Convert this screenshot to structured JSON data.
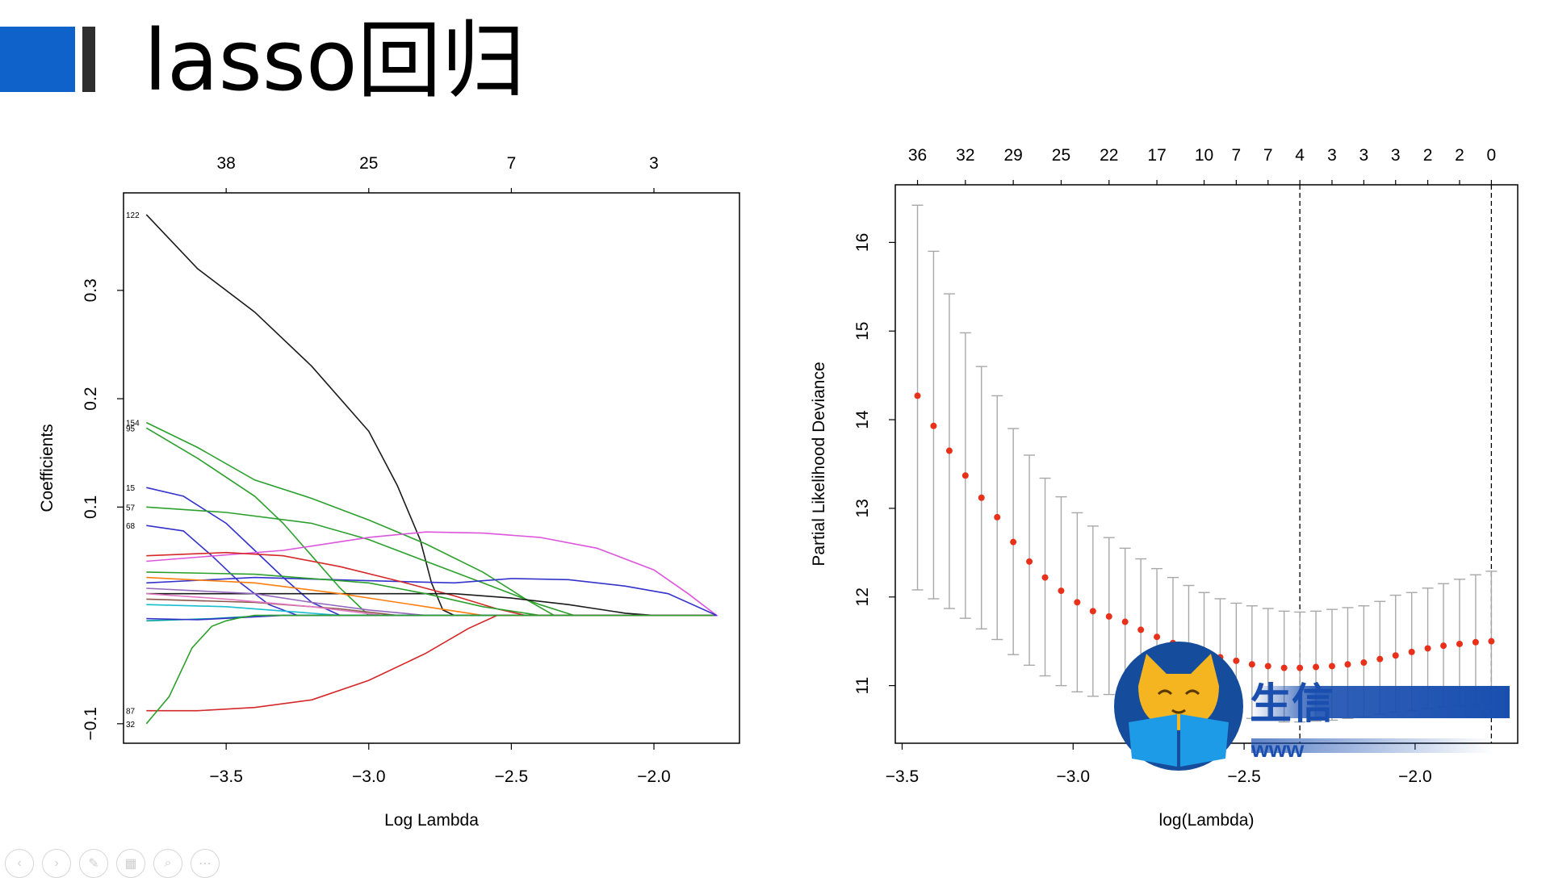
{
  "slide": {
    "title": "lasso回归"
  },
  "chart_data": [
    {
      "type": "line",
      "xlabel": "Log Lambda",
      "ylabel": "Coefficients",
      "xlim": [
        -3.86,
        -1.7
      ],
      "ylim": [
        -0.118,
        0.39
      ],
      "x_ticks": [
        -3.5,
        -3.0,
        -2.5,
        -2.0
      ],
      "x_tick_labels": [
        "−3.5",
        "−3.0",
        "−2.5",
        "−2.0"
      ],
      "y_ticks": [
        -0.1,
        0.1,
        0.2,
        0.3
      ],
      "y_tick_labels": [
        "−0.1",
        "0.1",
        "0.2",
        "0.3"
      ],
      "top_ticks": [
        -3.5,
        -3.0,
        -2.5,
        -2.0
      ],
      "top_tick_labels": [
        "38",
        "25",
        "7",
        "3"
      ],
      "series": [
        {
          "label": "122",
          "color": "#1a1a1a",
          "x": [
            -3.78,
            -3.6,
            -3.4,
            -3.2,
            -3.0,
            -2.9,
            -2.82,
            -2.78,
            -2.74,
            -2.7
          ],
          "y": [
            0.37,
            0.32,
            0.28,
            0.23,
            0.17,
            0.12,
            0.07,
            0.03,
            0.005,
            0
          ]
        },
        {
          "label": "154",
          "color": "#2ca02c",
          "x": [
            -3.78,
            -3.6,
            -3.4,
            -3.2,
            -3.0,
            -2.8,
            -2.6,
            -2.45,
            -2.35
          ],
          "y": [
            0.178,
            0.155,
            0.125,
            0.108,
            0.088,
            0.066,
            0.04,
            0.015,
            0
          ]
        },
        {
          "label": "95",
          "color": "#2ca02c",
          "x": [
            -3.78,
            -3.6,
            -3.4,
            -3.3,
            -3.2,
            -3.1,
            -3.0
          ],
          "y": [
            0.173,
            0.145,
            0.11,
            0.085,
            0.055,
            0.025,
            0
          ]
        },
        {
          "label": "15",
          "color": "#3333cc",
          "x": [
            -3.78,
            -3.65,
            -3.5,
            -3.4,
            -3.3,
            -3.2,
            -3.1
          ],
          "y": [
            0.118,
            0.11,
            0.085,
            0.06,
            0.035,
            0.012,
            0
          ]
        },
        {
          "label": "57",
          "color": "#2ca02c",
          "x": [
            -3.78,
            -3.5,
            -3.2,
            -3.0,
            -2.8,
            -2.6,
            -2.4,
            -2.28
          ],
          "y": [
            0.1,
            0.095,
            0.085,
            0.07,
            0.05,
            0.03,
            0.01,
            0
          ]
        },
        {
          "label": "68",
          "color": "#3333cc",
          "x": [
            -3.78,
            -3.65,
            -3.55,
            -3.45,
            -3.35,
            -3.25
          ],
          "y": [
            0.083,
            0.078,
            0.055,
            0.03,
            0.01,
            0
          ]
        },
        {
          "label": "",
          "color": "#dd55dd",
          "x": [
            -3.78,
            -3.3,
            -3.0,
            -2.8,
            -2.6,
            -2.4,
            -2.2,
            -2.0,
            -1.88,
            -1.78
          ],
          "y": [
            0.05,
            0.06,
            0.072,
            0.077,
            0.076,
            0.072,
            0.062,
            0.042,
            0.02,
            0
          ]
        },
        {
          "label": "",
          "color": "#3333cc",
          "x": [
            -3.78,
            -3.4,
            -3.0,
            -2.7,
            -2.5,
            -2.3,
            -2.1,
            -1.95,
            -1.78
          ],
          "y": [
            0.03,
            0.035,
            0.032,
            0.03,
            0.034,
            0.033,
            0.027,
            0.02,
            0
          ]
        },
        {
          "label": "",
          "color": "#d62728",
          "x": [
            -3.78,
            -3.5,
            -3.3,
            -3.1,
            -2.9,
            -2.7,
            -2.55,
            -2.45
          ],
          "y": [
            0.055,
            0.058,
            0.055,
            0.045,
            0.032,
            0.018,
            0.006,
            0
          ]
        },
        {
          "label": "",
          "color": "#1a1a1a",
          "x": [
            -3.78,
            -3.4,
            -3.0,
            -2.7,
            -2.5,
            -2.3,
            -2.1,
            -2.0
          ],
          "y": [
            0.02,
            0.02,
            0.02,
            0.02,
            0.016,
            0.01,
            0.002,
            0
          ]
        },
        {
          "label": "",
          "color": "#2ca02c",
          "x": [
            -3.78,
            -3.4,
            -3.0,
            -2.8,
            -2.6,
            -2.4
          ],
          "y": [
            0.04,
            0.038,
            0.03,
            0.02,
            0.008,
            0
          ]
        },
        {
          "label": "",
          "color": "#ff7f0e",
          "x": [
            -3.78,
            -3.4,
            -3.1,
            -2.8,
            -2.6
          ],
          "y": [
            0.035,
            0.03,
            0.02,
            0.008,
            0
          ]
        },
        {
          "label": "",
          "color": "#9467bd",
          "x": [
            -3.78,
            -3.4,
            -3.2,
            -3.0,
            -2.8
          ],
          "y": [
            0.025,
            0.02,
            0.012,
            0.005,
            0
          ]
        },
        {
          "label": "",
          "color": "#8c564b",
          "x": [
            -3.78,
            -3.4,
            -3.1,
            -2.9
          ],
          "y": [
            0.015,
            0.012,
            0.006,
            0
          ]
        },
        {
          "label": "",
          "color": "#17becf",
          "x": [
            -3.78,
            -3.5,
            -3.3,
            -3.1
          ],
          "y": [
            0.01,
            0.008,
            0.004,
            0
          ]
        },
        {
          "label": "",
          "color": "#e377c2",
          "x": [
            -3.78,
            -3.5,
            -3.2,
            -2.95
          ],
          "y": [
            0.02,
            0.015,
            0.008,
            0
          ]
        },
        {
          "label": "",
          "color": "#00a0a0",
          "x": [
            -3.78,
            -3.55,
            -3.35
          ],
          "y": [
            -0.005,
            -0.003,
            0
          ]
        },
        {
          "label": "",
          "color": "#3333cc",
          "x": [
            -3.78,
            -3.6,
            -3.45,
            -3.3
          ],
          "y": [
            -0.003,
            -0.004,
            -0.002,
            0
          ]
        },
        {
          "label": "87",
          "color": "#d62728",
          "x": [
            -3.78,
            -3.6,
            -3.4,
            -3.2,
            -3.0,
            -2.8,
            -2.65,
            -2.55
          ],
          "y": [
            -0.088,
            -0.088,
            -0.085,
            -0.078,
            -0.06,
            -0.035,
            -0.012,
            0
          ]
        },
        {
          "label": "32",
          "color": "#2ca02c",
          "x": [
            -3.78,
            -3.7,
            -3.62,
            -3.55,
            -3.5,
            -3.45,
            -3.4
          ],
          "y": [
            -0.1,
            -0.075,
            -0.03,
            -0.01,
            -0.005,
            -0.002,
            0
          ]
        }
      ]
    },
    {
      "type": "scatter",
      "xlabel": "log(Lambda)",
      "ylabel": "Partial Likelihood Deviance",
      "xlim": [
        -3.52,
        -1.7
      ],
      "ylim": [
        10.35,
        16.65
      ],
      "x_ticks": [
        -3.5,
        -3.0,
        -2.5,
        -2.0
      ],
      "x_tick_labels": [
        "−3.5",
        "−3.0",
        "−2.5",
        "−2.0"
      ],
      "y_ticks": [
        11,
        12,
        13,
        14,
        15,
        16
      ],
      "y_tick_labels": [
        "11",
        "12",
        "13",
        "14",
        "15",
        "16"
      ],
      "top_ticks": [
        -3.455,
        -3.315,
        -3.175,
        -3.035,
        -2.895,
        -2.755,
        -2.617,
        -2.523,
        -2.43,
        -2.337,
        -2.243,
        -2.15,
        -2.057,
        -1.963,
        -1.87,
        -1.777
      ],
      "top_tick_labels": [
        "36",
        "32",
        "29",
        "25",
        "22",
        "17",
        "10",
        "7",
        "7",
        "4",
        "3",
        "3",
        "3",
        "2",
        "2",
        "0"
      ],
      "vlines": [
        -2.337,
        -1.777
      ],
      "point_color": "#e8311a",
      "bar_color": "#a8a8a8",
      "points": [
        {
          "x": -3.455,
          "y": 14.27,
          "lo": 12.08,
          "hi": 16.42
        },
        {
          "x": -3.408,
          "y": 13.93,
          "lo": 11.98,
          "hi": 15.9
        },
        {
          "x": -3.362,
          "y": 13.65,
          "lo": 11.87,
          "hi": 15.42
        },
        {
          "x": -3.315,
          "y": 13.37,
          "lo": 11.76,
          "hi": 14.98
        },
        {
          "x": -3.268,
          "y": 13.12,
          "lo": 11.64,
          "hi": 14.6
        },
        {
          "x": -3.222,
          "y": 12.9,
          "lo": 11.52,
          "hi": 14.27
        },
        {
          "x": -3.175,
          "y": 12.62,
          "lo": 11.35,
          "hi": 13.9
        },
        {
          "x": -3.128,
          "y": 12.4,
          "lo": 11.23,
          "hi": 13.6
        },
        {
          "x": -3.082,
          "y": 12.22,
          "lo": 11.11,
          "hi": 13.34
        },
        {
          "x": -3.035,
          "y": 12.07,
          "lo": 11.0,
          "hi": 13.13
        },
        {
          "x": -2.988,
          "y": 11.94,
          "lo": 10.93,
          "hi": 12.95
        },
        {
          "x": -2.942,
          "y": 11.84,
          "lo": 10.88,
          "hi": 12.8
        },
        {
          "x": -2.895,
          "y": 11.78,
          "lo": 10.9,
          "hi": 12.67
        },
        {
          "x": -2.848,
          "y": 11.72,
          "lo": 10.88,
          "hi": 12.55
        },
        {
          "x": -2.802,
          "y": 11.63,
          "lo": 10.83,
          "hi": 12.43
        },
        {
          "x": -2.755,
          "y": 11.55,
          "lo": 10.8,
          "hi": 12.32
        },
        {
          "x": -2.708,
          "y": 11.48,
          "lo": 10.77,
          "hi": 12.22
        },
        {
          "x": -2.662,
          "y": 11.42,
          "lo": 10.74,
          "hi": 12.13
        },
        {
          "x": -2.617,
          "y": 11.36,
          "lo": 10.71,
          "hi": 12.05
        },
        {
          "x": -2.57,
          "y": 11.32,
          "lo": 10.68,
          "hi": 11.98
        },
        {
          "x": -2.523,
          "y": 11.28,
          "lo": 10.66,
          "hi": 11.93
        },
        {
          "x": -2.477,
          "y": 11.24,
          "lo": 10.63,
          "hi": 11.9
        },
        {
          "x": -2.43,
          "y": 11.22,
          "lo": 10.61,
          "hi": 11.87
        },
        {
          "x": -2.383,
          "y": 11.2,
          "lo": 10.59,
          "hi": 11.84
        },
        {
          "x": -2.337,
          "y": 11.2,
          "lo": 10.59,
          "hi": 11.83
        },
        {
          "x": -2.29,
          "y": 11.21,
          "lo": 10.6,
          "hi": 11.84
        },
        {
          "x": -2.243,
          "y": 11.22,
          "lo": 10.61,
          "hi": 11.86
        },
        {
          "x": -2.197,
          "y": 11.24,
          "lo": 10.63,
          "hi": 11.88
        },
        {
          "x": -2.15,
          "y": 11.26,
          "lo": 10.65,
          "hi": 11.9
        },
        {
          "x": -2.103,
          "y": 11.3,
          "lo": 10.68,
          "hi": 11.95
        },
        {
          "x": -2.057,
          "y": 11.34,
          "lo": 10.7,
          "hi": 12.02
        },
        {
          "x": -2.01,
          "y": 11.38,
          "lo": 10.72,
          "hi": 12.05
        },
        {
          "x": -1.963,
          "y": 11.42,
          "lo": 10.74,
          "hi": 12.1
        },
        {
          "x": -1.917,
          "y": 11.45,
          "lo": 10.76,
          "hi": 12.15
        },
        {
          "x": -1.87,
          "y": 11.47,
          "lo": 10.77,
          "hi": 12.2
        },
        {
          "x": -1.823,
          "y": 11.49,
          "lo": 10.78,
          "hi": 12.25
        },
        {
          "x": -1.777,
          "y": 11.5,
          "lo": 10.79,
          "hi": 12.29
        }
      ]
    }
  ],
  "logo": {
    "text": "生信",
    "subtext": "www"
  },
  "toolbar": {
    "icons": [
      "prev-slide-icon",
      "next-slide-icon",
      "pen-icon",
      "slides-grid-icon",
      "zoom-icon",
      "more-icon"
    ],
    "glyphs": [
      "‹",
      "›",
      "✎",
      "▦",
      "⌕",
      "⋯"
    ]
  }
}
